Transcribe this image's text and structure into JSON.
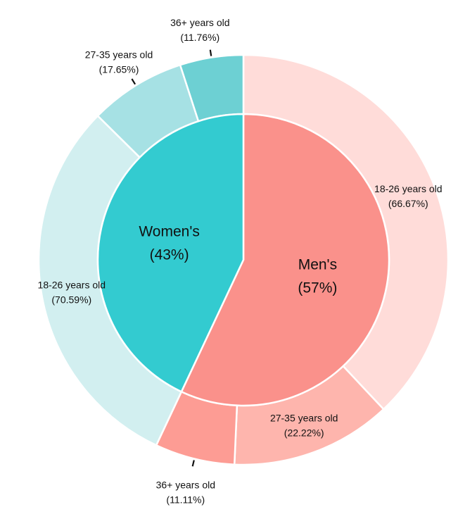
{
  "chart_data": {
    "type": "pie",
    "inner": [
      {
        "key": "women",
        "name": "Women's",
        "pct": 43,
        "color": "#33cbd0"
      },
      {
        "key": "men",
        "name": "Men's",
        "pct": 57,
        "color": "#fa918b"
      }
    ],
    "outer": [
      {
        "key": "men-18-26",
        "group": "Men's",
        "name": "18-26 years old",
        "pct_text": "(66.67%)",
        "value": 38,
        "color": "#ffdcd9"
      },
      {
        "key": "men-27-35",
        "group": "Men's",
        "name": "27-35 years old",
        "pct_text": "(22.22%)",
        "value": 12.7,
        "color": "#feb5ad"
      },
      {
        "key": "men-36",
        "group": "Men's",
        "name": "36+ years old",
        "pct_text": "(11.11%)",
        "value": 6.3,
        "color": "#fd9c94"
      },
      {
        "key": "women-18-26",
        "group": "Women's",
        "name": "18-26 years old",
        "pct_text": "(70.59%)",
        "value": 30.4,
        "color": "#d2eff0"
      },
      {
        "key": "women-27-35",
        "group": "Women's",
        "name": "27-35 years old",
        "pct_text": "(17.65%)",
        "value": 7.6,
        "color": "#a6e1e4"
      },
      {
        "key": "women-36",
        "group": "Women's",
        "name": "36+ years old",
        "pct_text": "(11.76%)",
        "value": 5.0,
        "color": "#6dd0d3"
      }
    ],
    "inner_labels": [
      {
        "key": "women",
        "line1": "Women's",
        "line2": "(43%)"
      },
      {
        "key": "men",
        "line1": "Men's",
        "line2": "(57%)"
      }
    ]
  }
}
